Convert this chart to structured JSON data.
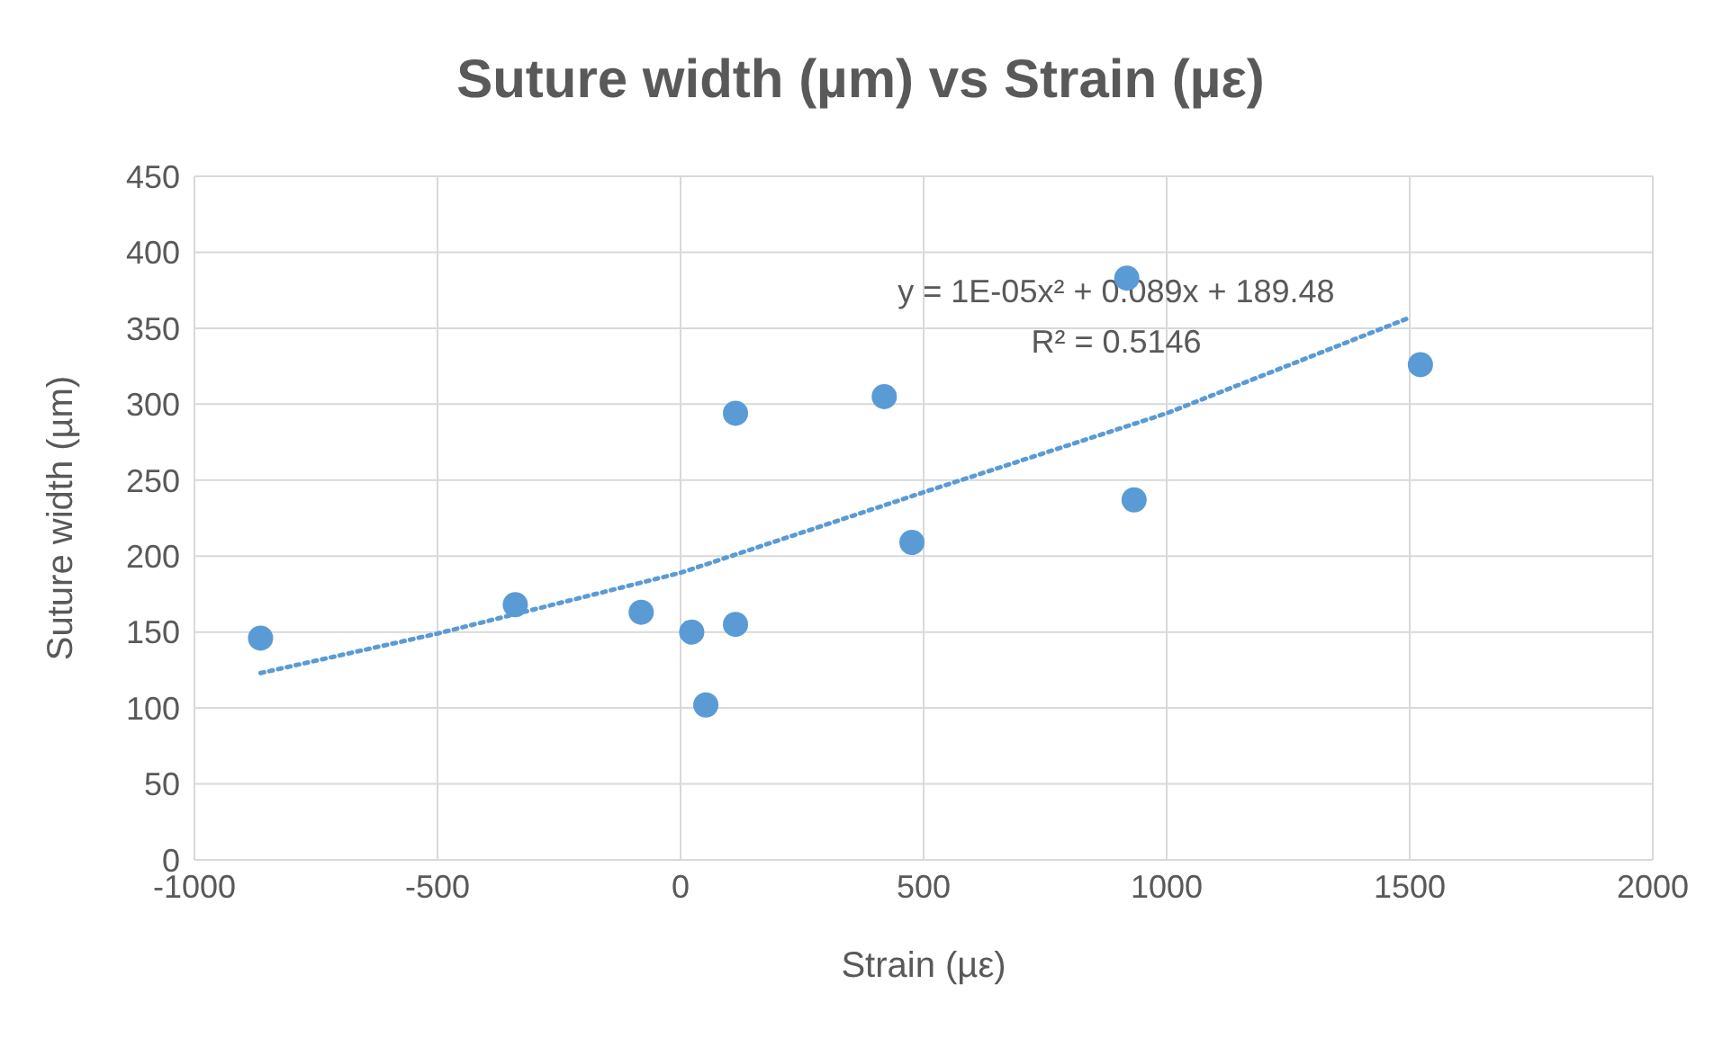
{
  "chart_data": {
    "type": "scatter",
    "title": "Suture width (µm) vs Strain (µε)",
    "xlabel": "Strain (µε)",
    "ylabel": "Suture width (µm)",
    "xlim": [
      -1000,
      2000
    ],
    "xticks": [
      -1000,
      -500,
      0,
      500,
      1000,
      1500,
      2000
    ],
    "ylim": [
      0,
      450
    ],
    "yticks": [
      0,
      50,
      100,
      150,
      200,
      250,
      300,
      350,
      400,
      450
    ],
    "grid": true,
    "marker": "circle",
    "series": [
      {
        "color": "#5b9bd5",
        "x": [
          -864,
          -340,
          -81,
          23,
          52,
          113,
          113,
          419,
          476,
          918,
          933,
          1522
        ],
        "values": [
          146,
          168,
          163,
          150,
          102,
          155,
          294,
          305,
          209,
          383,
          237,
          326
        ]
      },
      {
        "type": "line",
        "color": "#5b9bd5",
        "marker": "none",
        "line_style": "dotted",
        "x": [
          -864,
          -500,
          0,
          500,
          1000,
          1500
        ],
        "values": [
          123,
          149,
          189,
          242,
          294,
          357
        ]
      }
    ],
    "annotations": [
      "y = 1E-05x² + 0.089x + 189.48",
      "R² = 0.5146"
    ]
  }
}
